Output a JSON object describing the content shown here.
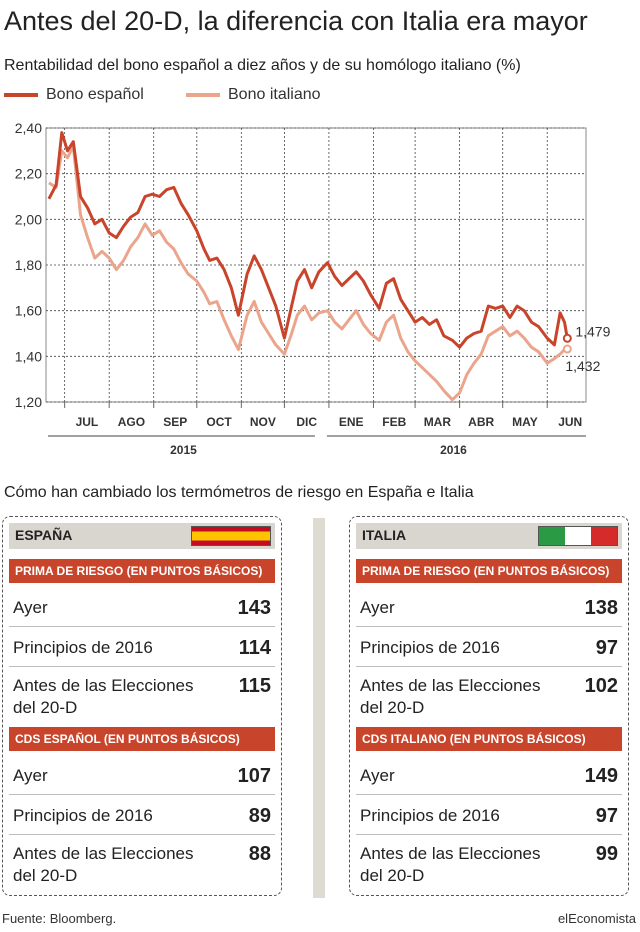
{
  "title": "Antes del 20-D, la diferencia con Italia era mayor",
  "subtitle": "Rentabilidad del bono español a diez años y de su homólogo italiano (%)",
  "colors": {
    "spain": "#c8442a",
    "italy": "#eba58c"
  },
  "chart_data": {
    "type": "line",
    "title": "Antes del 20-D, la diferencia con Italia era mayor",
    "ylabel": "Rentabilidad del bono español a diez años y de su homólogo italiano (%)",
    "xlabel": "",
    "ylim": [
      1.2,
      2.4
    ],
    "yticks": [
      "2,40",
      "2,20",
      "2,00",
      "1,80",
      "1,60",
      "1,40",
      "1,20"
    ],
    "month_ticks": [
      "JUL",
      "AGO",
      "SEP",
      "OCT",
      "NOV",
      "DIC",
      "ENE",
      "FEB",
      "MAR",
      "ABR",
      "MAY",
      "JUN"
    ],
    "years": [
      "2015",
      "2016"
    ],
    "grid": true,
    "legend_position": "top-left",
    "series": [
      {
        "name": "Bono español",
        "color": "#c8442a",
        "points": [
          [
            "2015-06-20",
            2.09
          ],
          [
            "2015-06-25",
            2.15
          ],
          [
            "2015-06-29",
            2.38
          ],
          [
            "2015-07-03",
            2.3
          ],
          [
            "2015-07-07",
            2.34
          ],
          [
            "2015-07-12",
            2.1
          ],
          [
            "2015-07-17",
            2.05
          ],
          [
            "2015-07-22",
            1.98
          ],
          [
            "2015-07-27",
            2.0
          ],
          [
            "2015-08-01",
            1.94
          ],
          [
            "2015-08-06",
            1.92
          ],
          [
            "2015-08-11",
            1.97
          ],
          [
            "2015-08-16",
            2.01
          ],
          [
            "2015-08-21",
            2.03
          ],
          [
            "2015-08-26",
            2.1
          ],
          [
            "2015-08-31",
            2.11
          ],
          [
            "2015-09-05",
            2.1
          ],
          [
            "2015-09-10",
            2.13
          ],
          [
            "2015-09-15",
            2.14
          ],
          [
            "2015-09-20",
            2.07
          ],
          [
            "2015-09-25",
            2.02
          ],
          [
            "2015-10-01",
            1.95
          ],
          [
            "2015-10-06",
            1.87
          ],
          [
            "2015-10-10",
            1.82
          ],
          [
            "2015-10-15",
            1.83
          ],
          [
            "2015-10-20",
            1.78
          ],
          [
            "2015-10-25",
            1.7
          ],
          [
            "2015-10-30",
            1.58
          ],
          [
            "2015-11-05",
            1.76
          ],
          [
            "2015-11-10",
            1.84
          ],
          [
            "2015-11-15",
            1.78
          ],
          [
            "2015-11-20",
            1.7
          ],
          [
            "2015-11-25",
            1.62
          ],
          [
            "2015-12-01",
            1.48
          ],
          [
            "2015-12-06",
            1.62
          ],
          [
            "2015-12-10",
            1.73
          ],
          [
            "2015-12-15",
            1.78
          ],
          [
            "2015-12-20",
            1.7
          ],
          [
            "2015-12-25",
            1.77
          ],
          [
            "2015-12-31",
            1.81
          ],
          [
            "2016-01-05",
            1.75
          ],
          [
            "2016-01-10",
            1.71
          ],
          [
            "2016-01-15",
            1.74
          ],
          [
            "2016-01-20",
            1.77
          ],
          [
            "2016-01-25",
            1.73
          ],
          [
            "2016-01-30",
            1.67
          ],
          [
            "2016-02-05",
            1.61
          ],
          [
            "2016-02-10",
            1.72
          ],
          [
            "2016-02-15",
            1.74
          ],
          [
            "2016-02-20",
            1.65
          ],
          [
            "2016-02-25",
            1.6
          ],
          [
            "2016-03-01",
            1.55
          ],
          [
            "2016-03-06",
            1.57
          ],
          [
            "2016-03-11",
            1.54
          ],
          [
            "2016-03-16",
            1.56
          ],
          [
            "2016-03-21",
            1.49
          ],
          [
            "2016-03-27",
            1.47
          ],
          [
            "2016-04-01",
            1.44
          ],
          [
            "2016-04-06",
            1.48
          ],
          [
            "2016-04-11",
            1.5
          ],
          [
            "2016-04-16",
            1.51
          ],
          [
            "2016-04-21",
            1.62
          ],
          [
            "2016-04-26",
            1.61
          ],
          [
            "2016-05-01",
            1.62
          ],
          [
            "2016-05-06",
            1.57
          ],
          [
            "2016-05-11",
            1.62
          ],
          [
            "2016-05-16",
            1.6
          ],
          [
            "2016-05-21",
            1.55
          ],
          [
            "2016-05-26",
            1.53
          ],
          [
            "2016-06-01",
            1.48
          ],
          [
            "2016-06-06",
            1.45
          ],
          [
            "2016-06-10",
            1.59
          ],
          [
            "2016-06-13",
            1.55
          ],
          [
            "2016-06-15",
            1.479
          ]
        ]
      },
      {
        "name": "Bono italiano",
        "color": "#eba58c",
        "points": [
          [
            "2015-06-20",
            2.16
          ],
          [
            "2015-06-25",
            2.14
          ],
          [
            "2015-06-29",
            2.3
          ],
          [
            "2015-07-03",
            2.27
          ],
          [
            "2015-07-07",
            2.32
          ],
          [
            "2015-07-12",
            2.02
          ],
          [
            "2015-07-17",
            1.92
          ],
          [
            "2015-07-22",
            1.83
          ],
          [
            "2015-07-27",
            1.86
          ],
          [
            "2015-08-01",
            1.83
          ],
          [
            "2015-08-06",
            1.78
          ],
          [
            "2015-08-11",
            1.82
          ],
          [
            "2015-08-16",
            1.88
          ],
          [
            "2015-08-21",
            1.92
          ],
          [
            "2015-08-26",
            1.98
          ],
          [
            "2015-08-31",
            1.93
          ],
          [
            "2015-09-05",
            1.95
          ],
          [
            "2015-09-10",
            1.9
          ],
          [
            "2015-09-15",
            1.87
          ],
          [
            "2015-09-20",
            1.81
          ],
          [
            "2015-09-25",
            1.76
          ],
          [
            "2015-10-01",
            1.73
          ],
          [
            "2015-10-06",
            1.68
          ],
          [
            "2015-10-10",
            1.63
          ],
          [
            "2015-10-15",
            1.64
          ],
          [
            "2015-10-20",
            1.56
          ],
          [
            "2015-10-25",
            1.49
          ],
          [
            "2015-10-30",
            1.43
          ],
          [
            "2015-11-05",
            1.58
          ],
          [
            "2015-11-10",
            1.64
          ],
          [
            "2015-11-15",
            1.55
          ],
          [
            "2015-11-20",
            1.5
          ],
          [
            "2015-11-25",
            1.45
          ],
          [
            "2015-12-01",
            1.41
          ],
          [
            "2015-12-06",
            1.5
          ],
          [
            "2015-12-10",
            1.58
          ],
          [
            "2015-12-15",
            1.62
          ],
          [
            "2015-12-20",
            1.56
          ],
          [
            "2015-12-25",
            1.59
          ],
          [
            "2015-12-31",
            1.6
          ],
          [
            "2016-01-05",
            1.55
          ],
          [
            "2016-01-10",
            1.52
          ],
          [
            "2016-01-15",
            1.56
          ],
          [
            "2016-01-20",
            1.6
          ],
          [
            "2016-01-25",
            1.54
          ],
          [
            "2016-01-30",
            1.5
          ],
          [
            "2016-02-05",
            1.47
          ],
          [
            "2016-02-10",
            1.55
          ],
          [
            "2016-02-15",
            1.58
          ],
          [
            "2016-02-20",
            1.48
          ],
          [
            "2016-02-25",
            1.42
          ],
          [
            "2016-03-01",
            1.38
          ],
          [
            "2016-03-06",
            1.35
          ],
          [
            "2016-03-11",
            1.32
          ],
          [
            "2016-03-16",
            1.29
          ],
          [
            "2016-03-21",
            1.25
          ],
          [
            "2016-03-27",
            1.21
          ],
          [
            "2016-04-01",
            1.24
          ],
          [
            "2016-04-06",
            1.32
          ],
          [
            "2016-04-11",
            1.37
          ],
          [
            "2016-04-16",
            1.41
          ],
          [
            "2016-04-21",
            1.49
          ],
          [
            "2016-04-26",
            1.51
          ],
          [
            "2016-05-01",
            1.53
          ],
          [
            "2016-05-06",
            1.49
          ],
          [
            "2016-05-11",
            1.51
          ],
          [
            "2016-05-16",
            1.48
          ],
          [
            "2016-05-21",
            1.44
          ],
          [
            "2016-05-26",
            1.42
          ],
          [
            "2016-06-01",
            1.37
          ],
          [
            "2016-06-06",
            1.39
          ],
          [
            "2016-06-10",
            1.41
          ],
          [
            "2016-06-13",
            1.43
          ],
          [
            "2016-06-15",
            1.432
          ]
        ]
      }
    ],
    "end_labels": [
      "1,479",
      "1,432"
    ]
  },
  "section_title": "Cómo han cambiado los termómetros de riesgo en España e Italia",
  "spain": {
    "country": "ESPAÑA",
    "flag_colors": [
      "#c60b1e",
      "#ffc400",
      "#c60b1e"
    ],
    "prima_header": "PRIMA DE RIESGO (EN PUNTOS BÁSICOS)",
    "prima": [
      {
        "label": "Ayer",
        "value": "143"
      },
      {
        "label": "Principios de 2016",
        "value": "114"
      },
      {
        "label": "Antes de las Elecciones del 20-D",
        "value": "115"
      }
    ],
    "cds_header": "CDS ESPAÑOL (EN PUNTOS BÁSICOS)",
    "cds": [
      {
        "label": "Ayer",
        "value": "107"
      },
      {
        "label": "Principios de 2016",
        "value": "89"
      },
      {
        "label": "Antes de las Elecciones del 20-D",
        "value": "88"
      }
    ]
  },
  "italy": {
    "country": "ITALIA",
    "flag_colors": [
      "#2a9a45",
      "#ffffff",
      "#d52b2b"
    ],
    "prima_header": "PRIMA DE RIESGO (EN PUNTOS BÁSICOS)",
    "prima": [
      {
        "label": "Ayer",
        "value": "138"
      },
      {
        "label": "Principios de 2016",
        "value": "97"
      },
      {
        "label": "Antes de las Elecciones del 20-D",
        "value": "102"
      }
    ],
    "cds_header": "CDS ITALIANO (EN PUNTOS BÁSICOS)",
    "cds": [
      {
        "label": "Ayer",
        "value": "149"
      },
      {
        "label": "Principios de 2016",
        "value": "97"
      },
      {
        "label": "Antes de las Elecciones del 20-D",
        "value": "99"
      }
    ]
  },
  "footer": {
    "source": "Fuente: Bloomberg.",
    "brand": "elEconomista"
  }
}
